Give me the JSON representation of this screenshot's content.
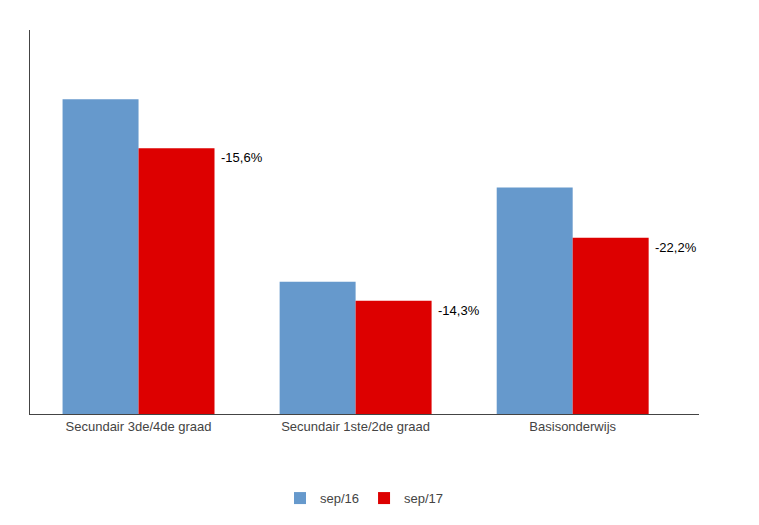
{
  "chart_data": {
    "type": "bar",
    "categories": [
      "Secundair 3de/4de graad",
      "Secundair 1ste/2de graad",
      "Basisonderwijs"
    ],
    "series": [
      {
        "name": "sep/16",
        "color": "#6699CC",
        "values": [
          1000,
          420,
          720
        ]
      },
      {
        "name": "sep/17",
        "color": "#DD0000",
        "values": [
          844,
          360,
          560
        ]
      }
    ],
    "annotations": [
      {
        "category": "Secundair 3de/4de graad",
        "series": "sep/17",
        "text": "-15,6%"
      },
      {
        "category": "Secundair 1ste/2de graad",
        "series": "sep/17",
        "text": "-14,3%"
      },
      {
        "category": "Basisonderwijs",
        "series": "sep/17",
        "text": "-22,2%"
      }
    ],
    "ylim": [
      0,
      1220
    ],
    "tick_labels": "x",
    "grid": false,
    "legend": "bottom"
  }
}
